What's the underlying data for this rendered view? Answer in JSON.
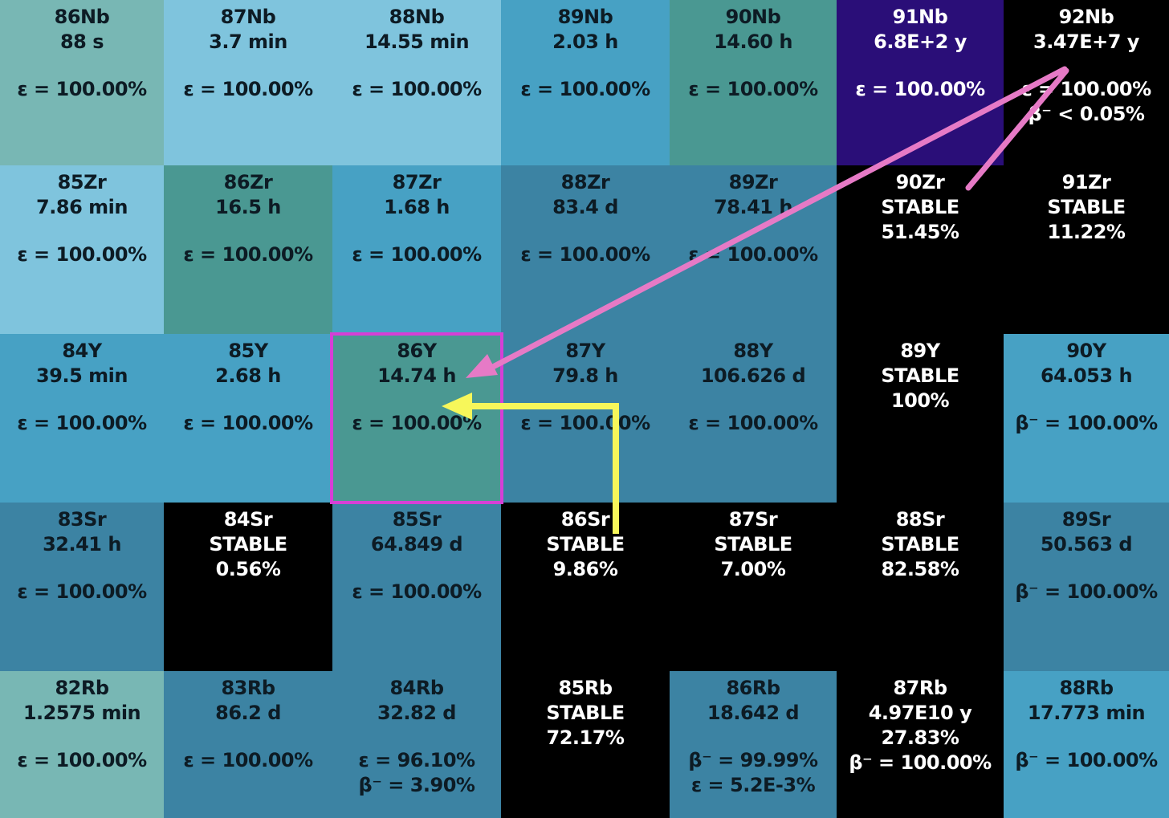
{
  "colors": {
    "stable": "#000000",
    "highlight_border": "#d63fd6",
    "pink_arrow": "#e67ac6",
    "yellow_arrow": "#f7f75a"
  },
  "rows": [
    [
      {
        "nuclide": "86Nb",
        "line2": "88 s",
        "decay": [
          "ε = 100.00%"
        ],
        "color": "#78b7b4"
      },
      {
        "nuclide": "87Nb",
        "line2": "3.7 min",
        "decay": [
          "ε = 100.00%"
        ],
        "color": "#7fc4dd"
      },
      {
        "nuclide": "88Nb",
        "line2": "14.55 min",
        "decay": [
          "ε = 100.00%"
        ],
        "color": "#7fc4dd"
      },
      {
        "nuclide": "89Nb",
        "line2": "2.03 h",
        "decay": [
          "ε = 100.00%"
        ],
        "color": "#47a1c4"
      },
      {
        "nuclide": "90Nb",
        "line2": "14.60 h",
        "decay": [
          "ε = 100.00%"
        ],
        "color": "#4a9892"
      },
      {
        "nuclide": "91Nb",
        "line2": "6.8E+2 y",
        "decay": [
          "ε = 100.00%"
        ],
        "color": "#2a0e78",
        "light": true
      },
      {
        "nuclide": "92Nb",
        "line2": "3.47E+7 y",
        "decay": [
          "ε = 100.00%",
          "β⁻ < 0.05%"
        ],
        "color": "#000000",
        "light": true
      }
    ],
    [
      {
        "nuclide": "85Zr",
        "line2": "7.86 min",
        "decay": [
          "ε = 100.00%"
        ],
        "color": "#7fc4dd"
      },
      {
        "nuclide": "86Zr",
        "line2": "16.5 h",
        "decay": [
          "ε = 100.00%"
        ],
        "color": "#4a9892"
      },
      {
        "nuclide": "87Zr",
        "line2": "1.68 h",
        "decay": [
          "ε = 100.00%"
        ],
        "color": "#47a1c4"
      },
      {
        "nuclide": "88Zr",
        "line2": "83.4 d",
        "decay": [
          "ε = 100.00%"
        ],
        "color": "#3c83a3"
      },
      {
        "nuclide": "89Zr",
        "line2": "78.41 h",
        "decay": [
          "ε = 100.00%"
        ],
        "color": "#3c83a3"
      },
      {
        "nuclide": "90Zr",
        "line2": "STABLE",
        "line3": "51.45%",
        "decay": [],
        "color": "#000000",
        "light": true
      },
      {
        "nuclide": "91Zr",
        "line2": "STABLE",
        "line3": "11.22%",
        "decay": [],
        "color": "#000000",
        "light": true
      }
    ],
    [
      {
        "nuclide": "84Y",
        "line2": "39.5 min",
        "decay": [
          "ε = 100.00%"
        ],
        "color": "#47a1c4"
      },
      {
        "nuclide": "85Y",
        "line2": "2.68 h",
        "decay": [
          "ε = 100.00%"
        ],
        "color": "#47a1c4"
      },
      {
        "nuclide": "86Y",
        "line2": "14.74 h",
        "decay": [
          "ε = 100.00%"
        ],
        "color": "#4a9892"
      },
      {
        "nuclide": "87Y",
        "line2": "79.8 h",
        "decay": [
          "ε = 100.00%"
        ],
        "color": "#3c83a3"
      },
      {
        "nuclide": "88Y",
        "line2": "106.626 d",
        "decay": [
          "ε = 100.00%"
        ],
        "color": "#3c83a3"
      },
      {
        "nuclide": "89Y",
        "line2": "STABLE",
        "line3": "100%",
        "decay": [],
        "color": "#000000",
        "light": true
      },
      {
        "nuclide": "90Y",
        "line2": "64.053 h",
        "decay": [
          "β⁻ = 100.00%"
        ],
        "color": "#47a1c4"
      }
    ],
    [
      {
        "nuclide": "83Sr",
        "line2": "32.41 h",
        "decay": [
          "ε = 100.00%"
        ],
        "color": "#3c83a3"
      },
      {
        "nuclide": "84Sr",
        "line2": "STABLE",
        "line3": "0.56%",
        "decay": [],
        "color": "#000000",
        "light": true
      },
      {
        "nuclide": "85Sr",
        "line2": "64.849 d",
        "decay": [
          "ε = 100.00%"
        ],
        "color": "#3c83a3"
      },
      {
        "nuclide": "86Sr",
        "line2": "STABLE",
        "line3": "9.86%",
        "decay": [],
        "color": "#000000",
        "light": true
      },
      {
        "nuclide": "87Sr",
        "line2": "STABLE",
        "line3": "7.00%",
        "decay": [],
        "color": "#000000",
        "light": true
      },
      {
        "nuclide": "88Sr",
        "line2": "STABLE",
        "line3": "82.58%",
        "decay": [],
        "color": "#000000",
        "light": true
      },
      {
        "nuclide": "89Sr",
        "line2": "50.563 d",
        "decay": [
          "β⁻ = 100.00%"
        ],
        "color": "#3c83a3"
      }
    ],
    [
      {
        "nuclide": "82Rb",
        "line2": "1.2575 min",
        "decay": [
          "ε = 100.00%"
        ],
        "color": "#78b7b4"
      },
      {
        "nuclide": "83Rb",
        "line2": "86.2 d",
        "decay": [
          "ε = 100.00%"
        ],
        "color": "#3c83a3"
      },
      {
        "nuclide": "84Rb",
        "line2": "32.82 d",
        "decay": [
          "ε = 96.10%",
          "β⁻ = 3.90%"
        ],
        "color": "#3c83a3"
      },
      {
        "nuclide": "85Rb",
        "line2": "STABLE",
        "line3": "72.17%",
        "decay": [],
        "color": "#000000",
        "light": true
      },
      {
        "nuclide": "86Rb",
        "line2": "18.642 d",
        "decay": [
          "β⁻ = 99.99%",
          "ε = 5.2E-3%"
        ],
        "color": "#3c83a3"
      },
      {
        "nuclide": "87Rb",
        "line2": "4.97E10 y",
        "line3": "27.83%",
        "decay": [
          "β⁻ = 100.00%"
        ],
        "color": "#000000",
        "light": true,
        "compact": true
      },
      {
        "nuclide": "88Rb",
        "line2": "17.773 min",
        "decay": [
          "β⁻ = 100.00%"
        ],
        "color": "#47a1c4"
      }
    ]
  ],
  "highlighted": {
    "row": 2,
    "col": 2
  }
}
